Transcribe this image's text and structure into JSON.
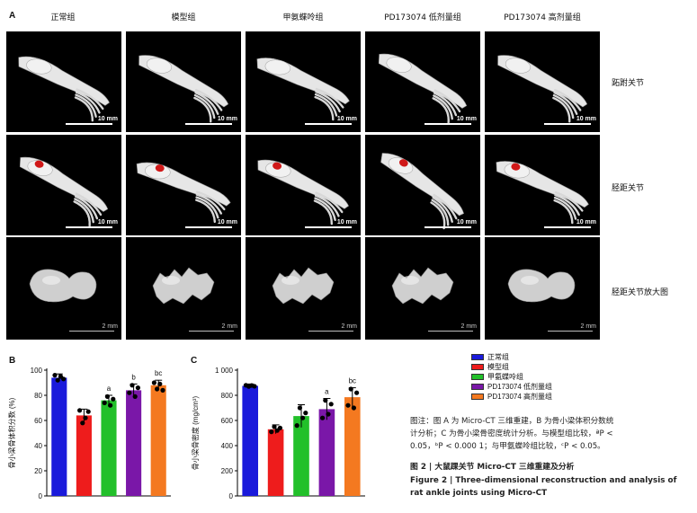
{
  "figure": {
    "panel_a_letter": "A",
    "panel_b_letter": "B",
    "panel_c_letter": "C",
    "columns": [
      "正常组",
      "模型组",
      "甲氨蝶呤组",
      "PD173074 低剂量组",
      "PD173074 高剂量组"
    ],
    "rows": [
      "跖跗关节",
      "胫距关节",
      "胫距关节放大图"
    ],
    "scale_bars": [
      "10 mm",
      "10 mm",
      "2 mm"
    ],
    "colors": {
      "blue": "#1a1adb",
      "red": "#ee1c1c",
      "green": "#22c02a",
      "purple": "#7a17a8",
      "orange": "#f47920",
      "lesion": "#d01818"
    }
  },
  "legend": [
    {
      "label": "正常组",
      "color": "#1a1adb"
    },
    {
      "label": "模型组",
      "color": "#ee1c1c"
    },
    {
      "label": "甲氨蝶呤组",
      "color": "#22c02a"
    },
    {
      "label": "PD173074 低剂量组",
      "color": "#7a17a8"
    },
    {
      "label": "PD173074 高剂量组",
      "color": "#f47920"
    }
  ],
  "chart_data": [
    {
      "type": "bar",
      "panel": "B",
      "ylabel": "骨小梁骨体积分数 (%)",
      "ylim": [
        0,
        100
      ],
      "yticks": [
        "0",
        "20",
        "40",
        "60",
        "80",
        "100"
      ],
      "categories": [
        "正常组",
        "模型组",
        "甲氨蝶呤组",
        "PD173074 低剂量组",
        "PD173074 高剂量组"
      ],
      "values": [
        94,
        64,
        76,
        84,
        88
      ],
      "errors": [
        3,
        5,
        4,
        5,
        4
      ],
      "points": [
        [
          96,
          92,
          95,
          93
        ],
        [
          68,
          58,
          62,
          67
        ],
        [
          74,
          79,
          72,
          77
        ],
        [
          82,
          88,
          79,
          86
        ],
        [
          90,
          85,
          89,
          84
        ]
      ],
      "annotations": [
        "",
        "",
        "a",
        "b",
        "bc"
      ],
      "colors": [
        "#1a1adb",
        "#ee1c1c",
        "#22c02a",
        "#7a17a8",
        "#f47920"
      ]
    },
    {
      "type": "bar",
      "panel": "C",
      "ylabel": "骨小梁骨密度 (mg/cm³)",
      "ylim": [
        0,
        1000
      ],
      "yticks": [
        "0",
        "200",
        "400",
        "600",
        "800",
        "1 000"
      ],
      "categories": [
        "正常组",
        "模型组",
        "甲氨蝶呤组",
        "PD173074 低剂量组",
        "PD173074 高剂量组"
      ],
      "values": [
        875,
        530,
        635,
        690,
        785
      ],
      "errors": [
        15,
        35,
        90,
        85,
        75
      ],
      "points": [
        [
          880,
          870,
          878,
          872
        ],
        [
          510,
          550,
          520,
          540
        ],
        [
          560,
          700,
          620,
          660
        ],
        [
          620,
          760,
          650,
          730
        ],
        [
          720,
          850,
          700,
          820
        ]
      ],
      "annotations": [
        "",
        "",
        "",
        "a",
        "bc"
      ],
      "colors": [
        "#1a1adb",
        "#ee1c1c",
        "#22c02a",
        "#7a17a8",
        "#f47920"
      ]
    }
  ],
  "caption": {
    "note_line1": "图注：图 A 为 Micro-CT 三维重建，B 为骨小梁体积分数统",
    "note_line2": "计分析；C 为骨小梁骨密度统计分析。与模型组比较，ªP <",
    "note_line3": "0.05，ᵇP < 0.000 1；与甲氨蝶呤组比较，ᶜP < 0.05。",
    "title_cn": "图 2 | 大鼠踝关节 Micro-CT 三维重建及分析",
    "title_en_line1": "Figure 2 | Three-dimensional reconstruction and analysis of",
    "title_en_line2": "rat ankle joints using Micro-CT"
  }
}
